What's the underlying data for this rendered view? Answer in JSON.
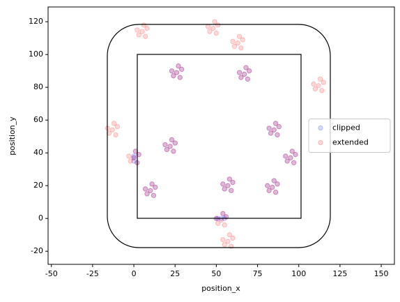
{
  "chart_data": {
    "type": "scatter",
    "xlabel": "position_x",
    "ylabel": "position_y",
    "xlim": [
      -52,
      158
    ],
    "ylim": [
      -28,
      129
    ],
    "xticks": [
      -50,
      -25,
      0,
      25,
      50,
      75,
      100,
      125,
      150
    ],
    "yticks": [
      -20,
      0,
      20,
      40,
      60,
      80,
      100,
      120
    ],
    "legend": "center right",
    "series": [
      {
        "name": "clipped",
        "color": "#0000ff",
        "x": [
          0,
          3,
          0,
          2,
          0,
          1,
          53,
          56,
          50,
          55,
          51,
          54,
          10,
          13,
          7,
          12,
          8,
          11,
          85,
          88,
          82,
          87,
          83,
          86,
          95,
          98,
          92,
          97,
          93,
          96,
          84,
          87,
          81,
          86,
          82,
          85,
          57,
          60,
          54,
          59,
          55,
          58,
          22,
          25,
          19,
          24,
          20,
          23,
          26,
          29,
          23,
          28,
          24,
          27,
          67,
          70,
          64,
          69,
          65,
          68
        ],
        "y": [
          37,
          39,
          38,
          34,
          35,
          41,
          0,
          1,
          0,
          0,
          0,
          3,
          17,
          19,
          18,
          14,
          15,
          21,
          54,
          56,
          55,
          51,
          52,
          58,
          37,
          39,
          38,
          34,
          35,
          41,
          19,
          21,
          20,
          16,
          17,
          23,
          20,
          22,
          21,
          17,
          18,
          24,
          44,
          46,
          45,
          41,
          42,
          48,
          89,
          91,
          90,
          86,
          87,
          93,
          88,
          90,
          89,
          85,
          86,
          92
        ]
      },
      {
        "name": "extended",
        "color": "#ff0000",
        "x": [
          5,
          8,
          2,
          7,
          3,
          6,
          48,
          51,
          45,
          50,
          46,
          49,
          63,
          66,
          60,
          65,
          61,
          64,
          112,
          115,
          109,
          114,
          110,
          113,
          -13,
          -10,
          -16,
          -11,
          -15,
          -12,
          0,
          3,
          -3,
          2,
          -2,
          1,
          10,
          13,
          7,
          12,
          8,
          11,
          53,
          56,
          50,
          55,
          51,
          54,
          57,
          60,
          54,
          59,
          55,
          58,
          85,
          88,
          82,
          87,
          83,
          86,
          95,
          98,
          92,
          97,
          93,
          96,
          84,
          87,
          81,
          86,
          82,
          85,
          57,
          60,
          54,
          59,
          55,
          58,
          22,
          25,
          19,
          24,
          20,
          23,
          26,
          29,
          23,
          28,
          24,
          27,
          67,
          70,
          64,
          69,
          65,
          68
        ],
        "y": [
          114,
          116,
          115,
          111,
          112,
          118,
          116,
          118,
          117,
          113,
          114,
          120,
          107,
          109,
          108,
          104,
          105,
          111,
          81,
          83,
          82,
          78,
          79,
          85,
          54,
          56,
          55,
          51,
          52,
          58,
          37,
          39,
          38,
          34,
          35,
          41,
          17,
          19,
          18,
          14,
          15,
          21,
          -1,
          1,
          0,
          -4,
          -3,
          3,
          -14,
          -12,
          -13,
          -17,
          -16,
          -10,
          54,
          56,
          55,
          51,
          52,
          58,
          37,
          39,
          38,
          34,
          35,
          41,
          19,
          21,
          20,
          16,
          17,
          23,
          20,
          22,
          21,
          17,
          18,
          24,
          44,
          46,
          45,
          41,
          42,
          48,
          89,
          91,
          90,
          86,
          87,
          93,
          88,
          90,
          89,
          85,
          86,
          92
        ]
      }
    ]
  }
}
